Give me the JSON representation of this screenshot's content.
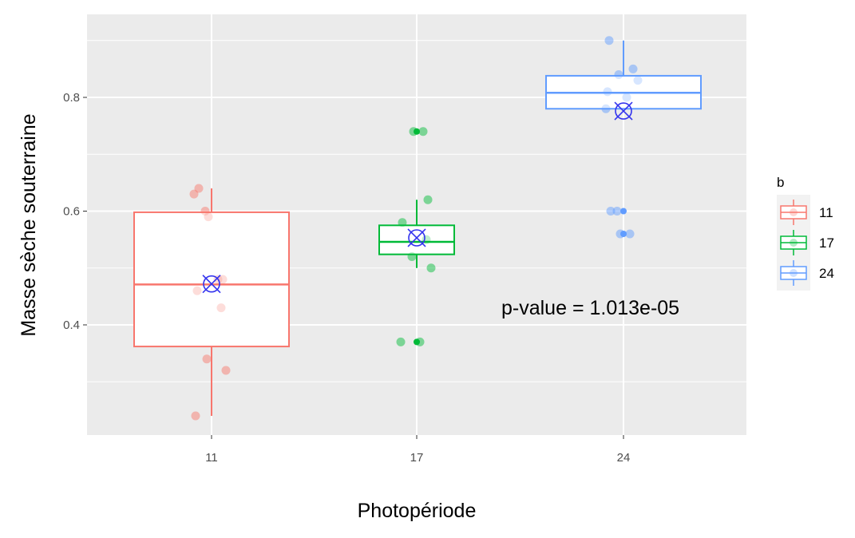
{
  "chart_data": {
    "type": "box",
    "xlabel": "Photopériode",
    "ylabel": "Masse sèche souterraine",
    "categories": [
      "11",
      "17",
      "24"
    ],
    "y_ticks": [
      0.4,
      0.6,
      0.8
    ],
    "y_tick_labels": [
      "0.4",
      "0.6",
      "0.8"
    ],
    "ylim": [
      0.205,
      0.935
    ],
    "grid": true,
    "annotation": "p-value = 1.013e-05",
    "legend": {
      "title": "b",
      "position": "right",
      "entries": [
        "11",
        "17",
        "24"
      ]
    },
    "colors": {
      "panel_background": "#ebebeb",
      "grid": "#ffffff",
      "mean_marker": "#3333ee",
      "11": "#f8766d",
      "17": "#00ba38",
      "24": "#619cff"
    },
    "boxes": [
      {
        "category": "11",
        "q1": 0.362,
        "median": 0.471,
        "q3": 0.598,
        "whisker_low": 0.24,
        "whisker_high": 0.64,
        "mean": 0.472,
        "outliers": []
      },
      {
        "category": "17",
        "q1": 0.524,
        "median": 0.546,
        "q3": 0.575,
        "whisker_low": 0.5,
        "whisker_high": 0.62,
        "mean": 0.553,
        "outliers": [
          0.74,
          0.37
        ]
      },
      {
        "category": "24",
        "q1": 0.78,
        "median": 0.808,
        "q3": 0.838,
        "whisker_low": 0.78,
        "whisker_high": 0.9,
        "mean": 0.776,
        "outliers": [
          0.6,
          0.56
        ]
      }
    ],
    "points": [
      {
        "category": "11",
        "values": [
          0.63,
          0.64,
          0.6,
          0.59,
          0.48,
          0.48,
          0.46,
          0.43,
          0.34,
          0.32,
          0.24
        ]
      },
      {
        "category": "17",
        "values": [
          0.74,
          0.74,
          0.62,
          0.58,
          0.55,
          0.52,
          0.5,
          0.37,
          0.37
        ]
      },
      {
        "category": "24",
        "values": [
          0.9,
          0.85,
          0.84,
          0.83,
          0.81,
          0.8,
          0.78,
          0.6,
          0.6,
          0.56,
          0.56
        ]
      }
    ]
  }
}
